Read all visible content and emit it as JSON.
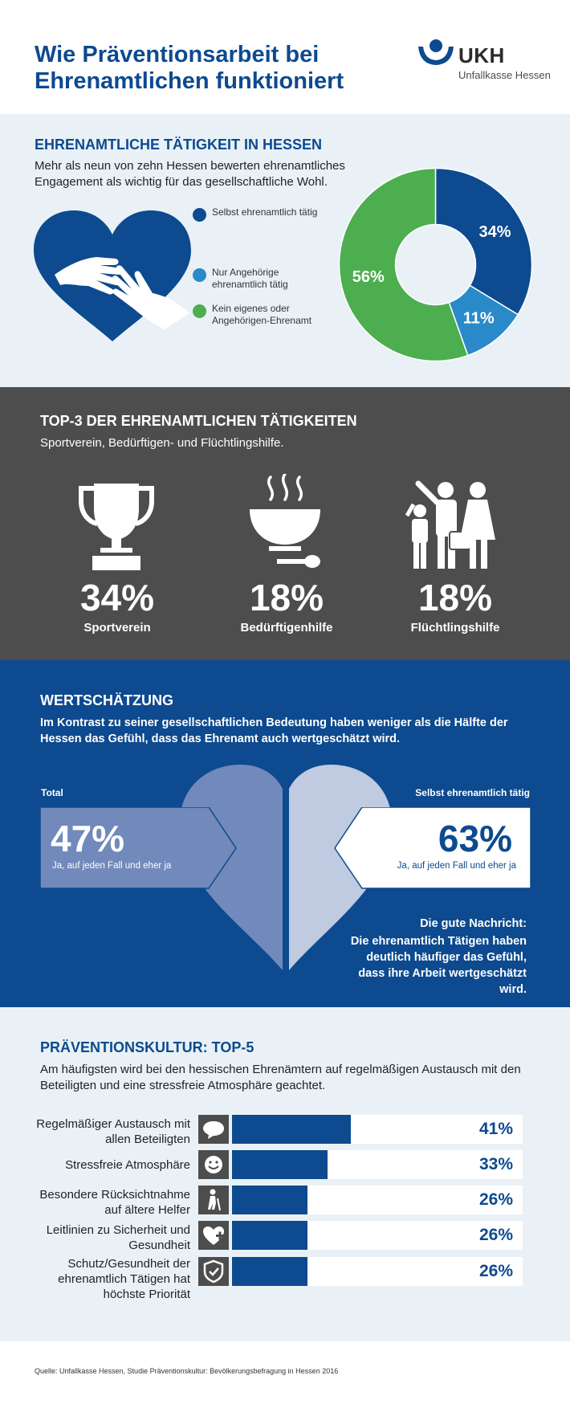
{
  "header": {
    "title": "Wie Präventionsarbeit bei Ehrenamtlichen funktioniert",
    "logo_big": "UKH",
    "logo_small": "Unfallkasse Hessen"
  },
  "section1": {
    "heading": "EHRENAMTLICHE TÄTIGKEIT IN HESSEN",
    "intro": "Mehr als neun von zehn Hessen bewerten ehrenamtliches Engagement als wichtig für das gesellschaftliche Wohl.",
    "legend": [
      {
        "label": "Selbst ehrenamtlich tätig",
        "color": "#0d4a8f"
      },
      {
        "label": "Nur Angehörige ehrenamtlich tätig",
        "color": "#2a8ac9"
      },
      {
        "label": "Kein eigenes oder Angehörigen-Ehrenamt",
        "color": "#4cae4f"
      }
    ]
  },
  "chart_data": {
    "type": "pie",
    "categories": [
      "Selbst ehrenamtlich tätig",
      "Nur Angehörige ehrenamtlich tätig",
      "Kein eigenes oder Angehörigen-Ehrenamt"
    ],
    "values": [
      34,
      11,
      56
    ],
    "labels": [
      "34%",
      "11%",
      "56%"
    ],
    "colors": [
      "#0d4a8f",
      "#2a8ac9",
      "#4cae4f"
    ],
    "donut": true
  },
  "section2": {
    "heading": "TOP-3 DER EHRENAMTLICHEN TÄTIGKEITEN",
    "intro": "Sportverein, Bedürftigen- und Flüchtlingshilfe.",
    "items": [
      {
        "pct": "34%",
        "label": "Sportverein",
        "icon": "trophy-icon"
      },
      {
        "pct": "18%",
        "label": "Bedürftigenhilfe",
        "icon": "soup-bowl-icon"
      },
      {
        "pct": "18%",
        "label": "Flüchtlingshilfe",
        "icon": "family-icon"
      }
    ]
  },
  "section3": {
    "heading": "WERTSCHÄTZUNG",
    "intro": "Im Kontrast zu seiner gesellschaftlichen Bedeutung haben weniger als die Hälfte der Hessen das Gefühl, dass das Ehrenamt auch wertgeschätzt wird.",
    "left_label": "Total",
    "left_pct": "47%",
    "left_sub": "Ja, auf jeden Fall und eher ja",
    "right_label": "Selbst ehrenamtlich tätig",
    "right_pct": "63%",
    "right_sub": "Ja, auf jeden Fall und eher ja",
    "note_title": "Die gute Nachricht:",
    "note_text": "Die ehrenamtlich Tätigen haben deutlich häufiger das Gefühl, dass ihre Arbeit wertgeschätzt wird."
  },
  "section4": {
    "heading": "PRÄVENTIONSKULTUR: TOP-5",
    "intro": "Am häufigsten wird bei den hessischen Ehrenämtern auf regelmäßigen Austausch mit den Beteiligten und eine stressfreie Atmosphäre geachtet.",
    "rows": [
      {
        "label": "Regelmäßiger Austausch mit allen Beteiligten",
        "value": 41,
        "pct": "41%",
        "icon": "speech-bubble-icon"
      },
      {
        "label": "Stressfreie Atmosphäre",
        "value": 33,
        "pct": "33%",
        "icon": "smiley-icon"
      },
      {
        "label": "Besondere Rücksichtnahme auf ältere Helfer",
        "value": 26,
        "pct": "26%",
        "icon": "elderly-person-icon"
      },
      {
        "label": "Leitlinien zu Sicherheit und Gesundheit",
        "value": 26,
        "pct": "26%",
        "icon": "heart-plus-icon"
      },
      {
        "label": "Schutz/Gesundheit der ehrenamtlich Tätigen hat höchste Priorität",
        "value": 26,
        "pct": "26%",
        "icon": "shield-check-icon"
      }
    ]
  },
  "footer": {
    "source": "Quelle: Unfallkasse Hessen, Studie Präventionskultur: Bevölkerungsbefragung in Hessen 2016"
  }
}
